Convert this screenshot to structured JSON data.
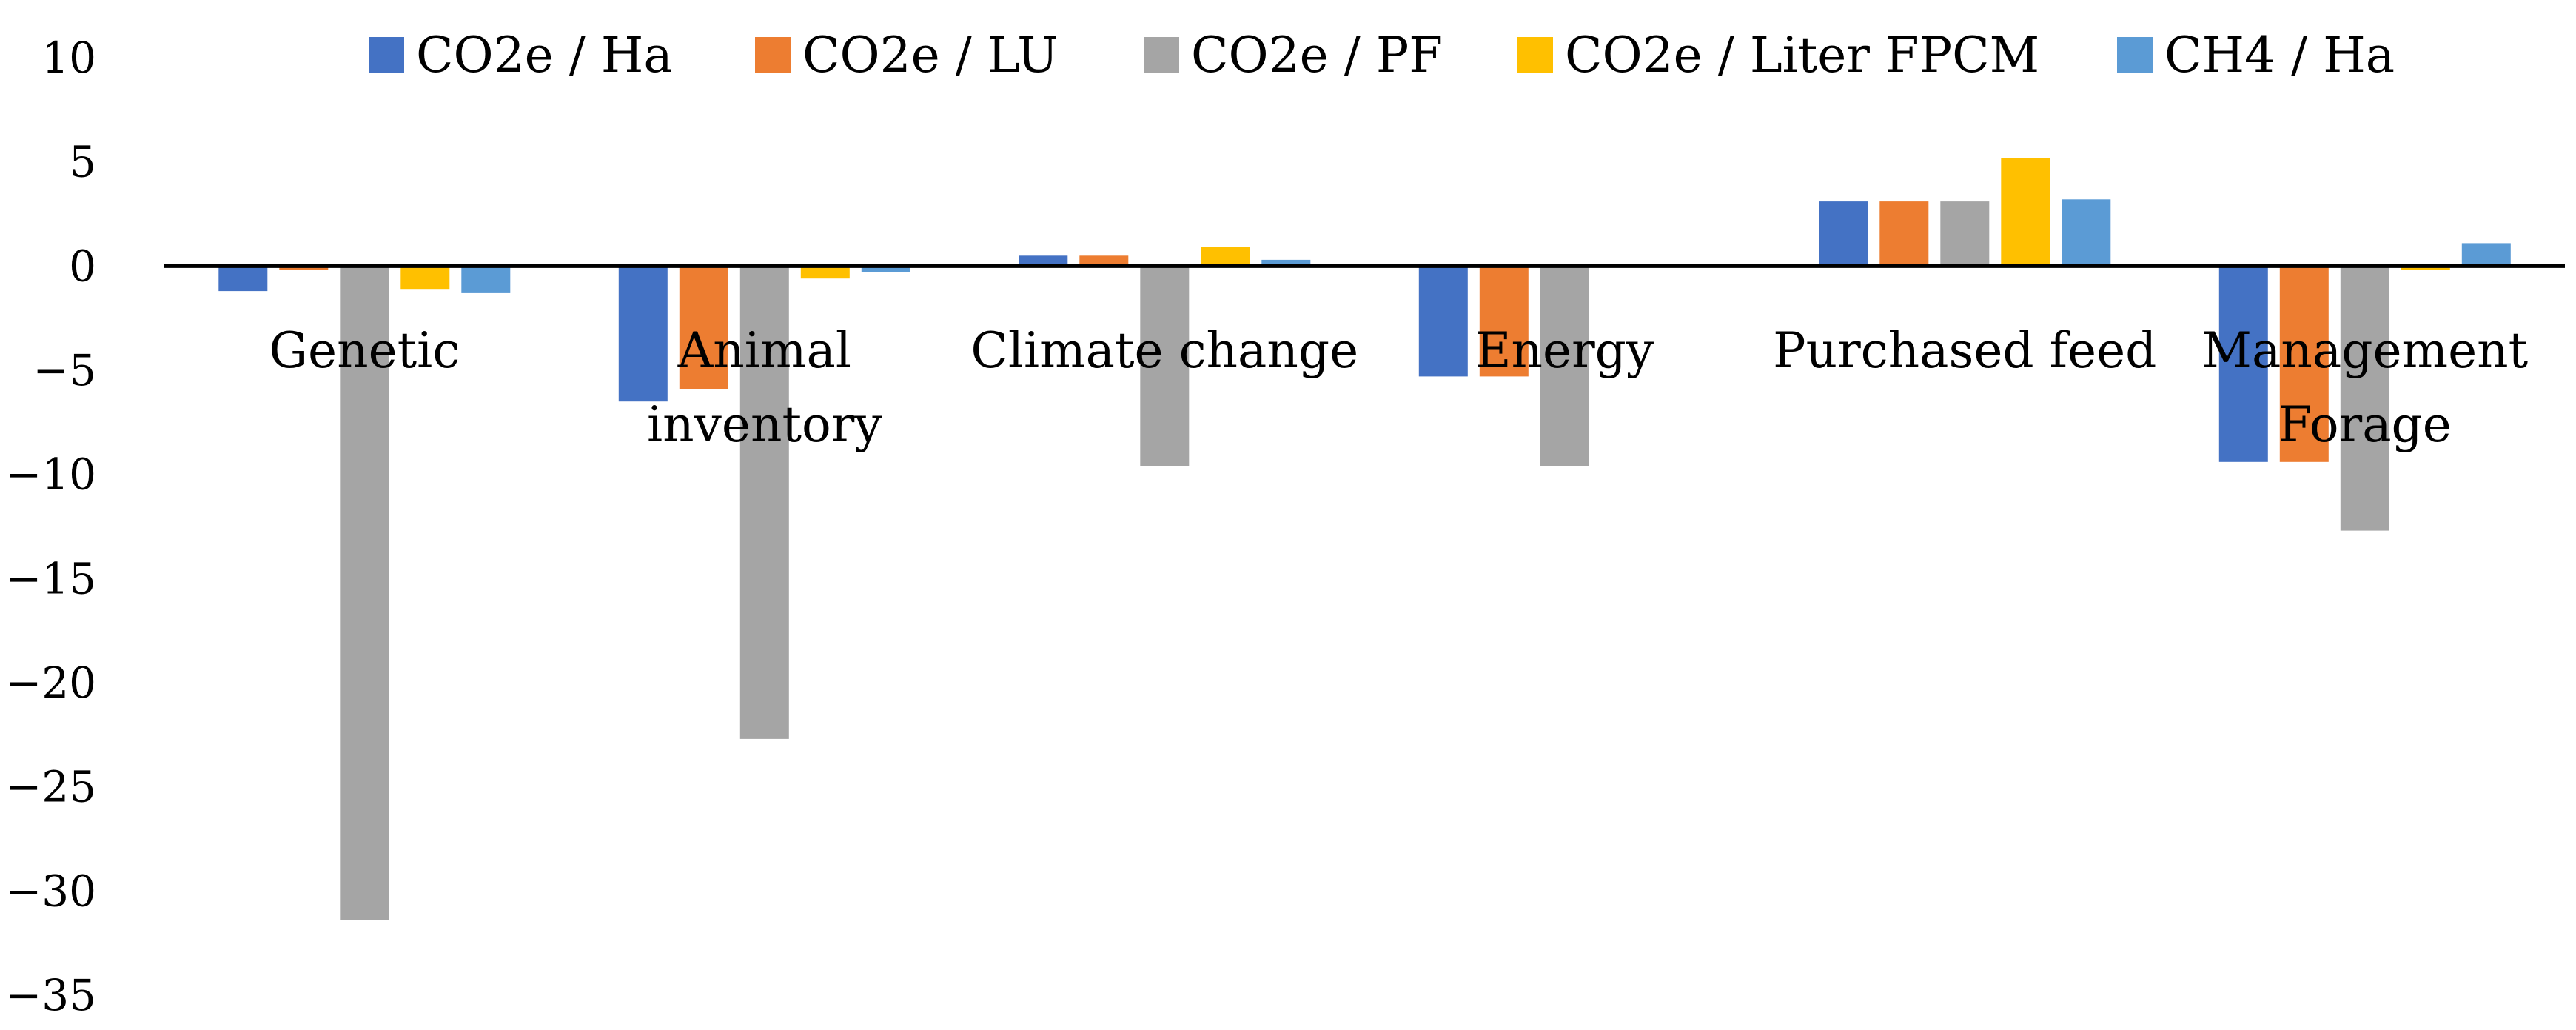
{
  "chart_data": {
    "type": "bar",
    "title": "",
    "xlabel": "",
    "ylabel": "",
    "ylim": [
      -35,
      10
    ],
    "yticks": [
      10,
      5,
      0,
      -5,
      -10,
      -15,
      -20,
      -25,
      -30,
      -35
    ],
    "ytick_labels": [
      "10",
      "5",
      "0",
      "−5",
      "−10",
      "−15",
      "−20",
      "−25",
      "−30",
      "−35"
    ],
    "grid": false,
    "legend_position": "top",
    "categories": [
      [
        "Genetic"
      ],
      [
        "Animal",
        "inventory"
      ],
      [
        "Climate change"
      ],
      [
        "Energy"
      ],
      [
        "Purchased feed"
      ],
      [
        "Management",
        "Forage"
      ]
    ],
    "series": [
      {
        "name": "CO2e / Ha",
        "color": "#4472C4",
        "values": [
          -1.2,
          -6.5,
          0.5,
          -5.3,
          3.1,
          -9.4
        ]
      },
      {
        "name": "CO2e / LU",
        "color": "#ED7D31",
        "values": [
          -0.2,
          -5.9,
          0.5,
          -5.3,
          3.1,
          -9.4
        ]
      },
      {
        "name": "CO2e / PF",
        "color": "#A5A5A5",
        "values": [
          -31.4,
          -22.7,
          -9.6,
          -9.6,
          3.1,
          -12.7
        ]
      },
      {
        "name": "CO2e / Liter FPCM",
        "color": "#FFC000",
        "values": [
          -1.1,
          -0.6,
          0.9,
          0.0,
          5.2,
          -0.2
        ]
      },
      {
        "name": "CH4 / Ha",
        "color": "#5B9BD5",
        "values": [
          -1.3,
          -0.3,
          0.3,
          0.0,
          3.2,
          1.1
        ]
      }
    ]
  }
}
